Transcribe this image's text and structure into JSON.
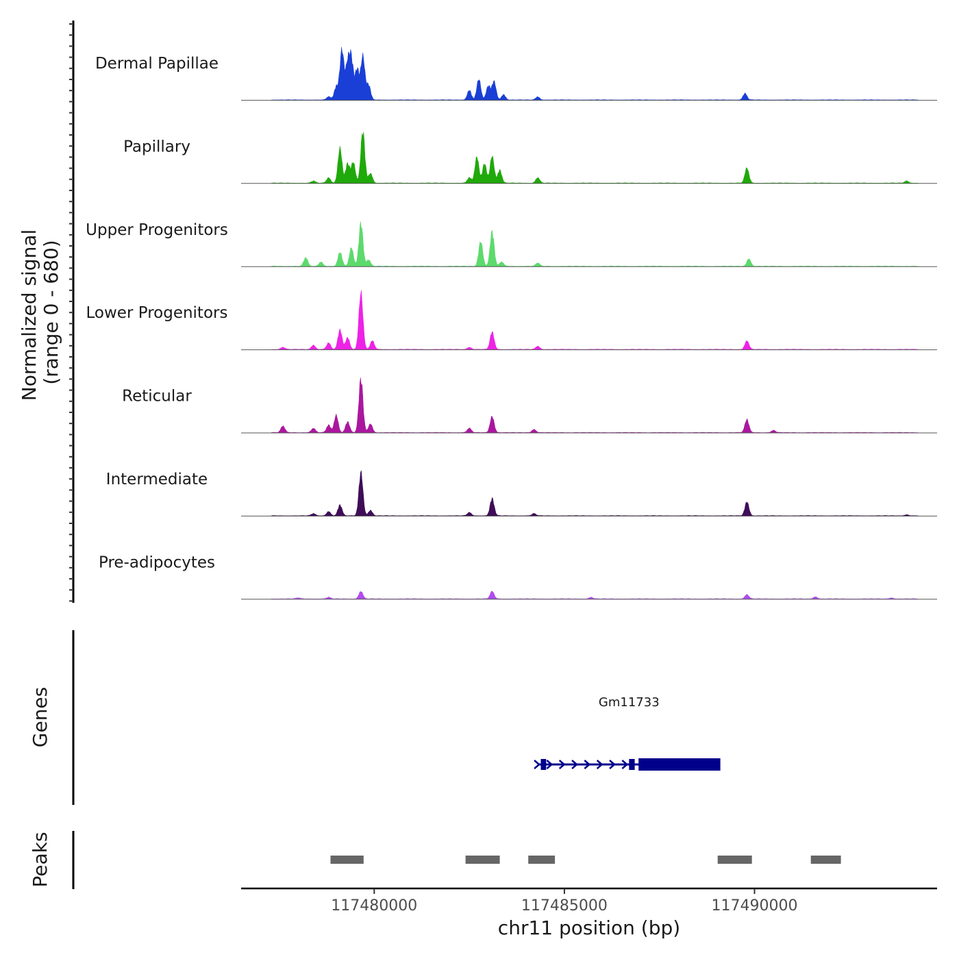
{
  "chart_data": {
    "type": "area",
    "y_axis_label": "Normalized signal",
    "y_axis_range_label": "(range 0 - 680)",
    "y_range": [
      0,
      680
    ],
    "x_label": "chr11 position (bp)",
    "x_range": [
      117476500,
      117494800
    ],
    "x_ticks": [
      117480000,
      117485000,
      117490000
    ],
    "x_tick_labels": [
      "117480000",
      "117485000",
      "117490000"
    ],
    "tracks": [
      {
        "name": "Dermal Papillae",
        "color": "#1a3fd6",
        "peaks": [
          [
            117478800,
            30
          ],
          [
            117479000,
            120
          ],
          [
            117479150,
            460
          ],
          [
            117479300,
            320
          ],
          [
            117479400,
            360
          ],
          [
            117479550,
            280
          ],
          [
            117479700,
            400
          ],
          [
            117479850,
            140
          ],
          [
            117482500,
            90
          ],
          [
            117482750,
            190
          ],
          [
            117483000,
            130
          ],
          [
            117483150,
            170
          ],
          [
            117483400,
            50
          ],
          [
            117484300,
            30
          ],
          [
            117489750,
            60
          ]
        ]
      },
      {
        "name": "Papillary",
        "color": "#1fa90a",
        "peaks": [
          [
            117478400,
            20
          ],
          [
            117478800,
            50
          ],
          [
            117479100,
            320
          ],
          [
            117479300,
            180
          ],
          [
            117479450,
            190
          ],
          [
            117479700,
            480
          ],
          [
            117479900,
            90
          ],
          [
            117482500,
            50
          ],
          [
            117482700,
            240
          ],
          [
            117482900,
            180
          ],
          [
            117483100,
            250
          ],
          [
            117483300,
            120
          ],
          [
            117484300,
            50
          ],
          [
            117489800,
            140
          ],
          [
            117494000,
            20
          ]
        ]
      },
      {
        "name": "Upper Progenitors",
        "color": "#5cda6c",
        "peaks": [
          [
            117478200,
            80
          ],
          [
            117478600,
            40
          ],
          [
            117479100,
            130
          ],
          [
            117479400,
            170
          ],
          [
            117479650,
            400
          ],
          [
            117479850,
            60
          ],
          [
            117482800,
            230
          ],
          [
            117483100,
            320
          ],
          [
            117483350,
            40
          ],
          [
            117484300,
            30
          ],
          [
            117489850,
            70
          ]
        ]
      },
      {
        "name": "Lower Progenitors",
        "color": "#ee22e6",
        "peaks": [
          [
            117477600,
            20
          ],
          [
            117478400,
            40
          ],
          [
            117478800,
            60
          ],
          [
            117479100,
            180
          ],
          [
            117479300,
            110
          ],
          [
            117479650,
            520
          ],
          [
            117479950,
            80
          ],
          [
            117482500,
            20
          ],
          [
            117483100,
            160
          ],
          [
            117484300,
            30
          ],
          [
            117489800,
            80
          ]
        ]
      },
      {
        "name": "Reticular",
        "color": "#aa179e",
        "peaks": [
          [
            117477600,
            60
          ],
          [
            117478400,
            40
          ],
          [
            117478800,
            70
          ],
          [
            117479000,
            160
          ],
          [
            117479300,
            100
          ],
          [
            117479650,
            500
          ],
          [
            117479900,
            80
          ],
          [
            117482500,
            40
          ],
          [
            117483100,
            150
          ],
          [
            117484200,
            30
          ],
          [
            117489800,
            120
          ],
          [
            117490500,
            20
          ]
        ]
      },
      {
        "name": "Intermediate",
        "color": "#3f0d58",
        "peaks": [
          [
            117478400,
            20
          ],
          [
            117478800,
            40
          ],
          [
            117479100,
            100
          ],
          [
            117479650,
            400
          ],
          [
            117479900,
            50
          ],
          [
            117482500,
            30
          ],
          [
            117483100,
            160
          ],
          [
            117484200,
            20
          ],
          [
            117489800,
            130
          ],
          [
            117494000,
            10
          ]
        ]
      },
      {
        "name": "Pre-adipocytes",
        "color": "#b14ced",
        "peaks": [
          [
            117478000,
            10
          ],
          [
            117478800,
            15
          ],
          [
            117479650,
            70
          ],
          [
            117483100,
            70
          ],
          [
            117485700,
            15
          ],
          [
            117489800,
            40
          ],
          [
            117491600,
            20
          ],
          [
            117493600,
            10
          ]
        ]
      }
    ],
    "gene": {
      "name": "Gm11733",
      "start": 117484300,
      "end": 117489100,
      "strand": "+",
      "exons": [
        [
          117484380,
          117484520
        ],
        [
          117486700,
          117486850
        ],
        [
          117486950,
          117489100
        ]
      ],
      "color": "#00008b"
    },
    "peak_regions": [
      [
        117478850,
        117479720
      ],
      [
        117482400,
        117483300
      ],
      [
        117484050,
        117484750
      ],
      [
        117489030,
        117489930
      ],
      [
        117491480,
        117492270
      ]
    ],
    "peak_color": "#666666",
    "genes_label": "Genes",
    "peaks_label": "Peaks"
  }
}
